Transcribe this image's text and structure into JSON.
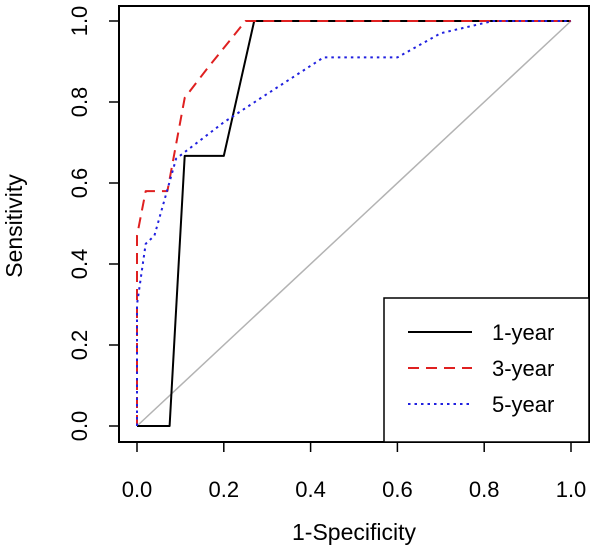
{
  "chart_data": {
    "type": "line",
    "xlabel": "1-Specificity",
    "ylabel": "Sensitivity",
    "xlim": [
      0.0,
      1.0
    ],
    "ylim": [
      0.0,
      1.0
    ],
    "x_ticks": [
      "0.0",
      "0.2",
      "0.4",
      "0.6",
      "0.8",
      "1.0"
    ],
    "y_ticks": [
      "0.0",
      "0.2",
      "0.4",
      "0.6",
      "0.8",
      "1.0"
    ],
    "grid": false,
    "legend_position": "bottom-right",
    "reference_line": {
      "x": [
        0,
        1
      ],
      "y": [
        0,
        1
      ],
      "color": "#b3b3b3"
    },
    "series": [
      {
        "name": "1-year",
        "color": "#000000",
        "dash": "solid",
        "x": [
          0.0,
          0.075,
          0.11,
          0.2,
          0.27,
          1.0
        ],
        "y": [
          0.0,
          0.0,
          0.667,
          0.667,
          1.0,
          1.0
        ]
      },
      {
        "name": "3-year",
        "color": "#df2020",
        "dash": "dashed",
        "x": [
          0.0,
          0.0,
          0.02,
          0.07,
          0.11,
          0.16,
          0.25,
          0.27,
          1.0
        ],
        "y": [
          0.0,
          0.47,
          0.58,
          0.58,
          0.81,
          0.88,
          1.0,
          1.0,
          1.0
        ]
      },
      {
        "name": "5-year",
        "color": "#2020df",
        "dash": "dotted",
        "x": [
          0.0,
          0.0,
          0.02,
          0.04,
          0.09,
          0.2,
          0.3,
          0.43,
          0.6,
          0.7,
          0.82,
          1.0
        ],
        "y": [
          0.0,
          0.3,
          0.45,
          0.47,
          0.66,
          0.75,
          0.82,
          0.91,
          0.91,
          0.97,
          1.0,
          1.0
        ]
      }
    ]
  }
}
